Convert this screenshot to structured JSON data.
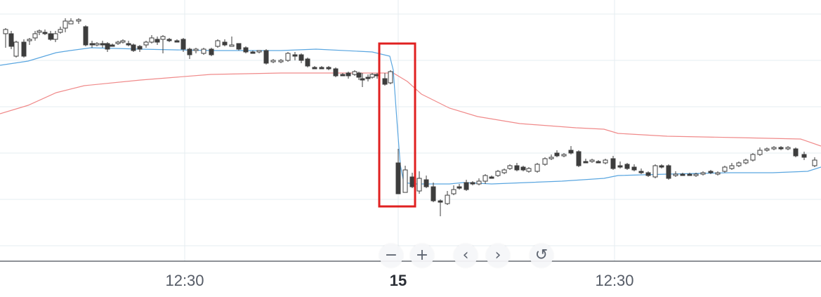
{
  "chart_data": {
    "type": "candlestick",
    "x_axis": {
      "tick_labels": [
        "12:30",
        "15",
        "12:30"
      ],
      "bold_labels": [
        "15"
      ]
    },
    "y_range": [
      0,
      423
    ],
    "colors": {
      "up_candle_fill": "#ffffff",
      "down_candle_fill": "#3d3d3d",
      "candle_outline": "#3d3d3d",
      "blue_line": "#5aa6e0",
      "red_line": "#f08a8a",
      "highlight_box": "#e02020",
      "grid": "#e6ecf1"
    },
    "candles": [
      [
        8,
        48,
        42,
        68,
        40
      ],
      [
        16,
        48,
        66,
        70,
        44
      ],
      [
        23,
        80,
        60,
        82,
        58
      ],
      [
        34,
        60,
        80,
        82,
        56
      ],
      [
        42,
        58,
        56,
        64,
        54
      ],
      [
        50,
        54,
        48,
        58,
        44
      ],
      [
        56,
        46,
        44,
        50,
        42
      ],
      [
        64,
        46,
        46,
        50,
        42
      ],
      [
        72,
        48,
        56,
        58,
        44
      ],
      [
        79,
        56,
        48,
        60,
        44
      ],
      [
        86,
        46,
        42,
        48,
        38
      ],
      [
        93,
        40,
        30,
        46,
        26
      ],
      [
        101,
        34,
        30,
        34,
        26
      ],
      [
        112,
        30,
        28,
        34,
        26
      ],
      [
        122,
        38,
        64,
        66,
        36
      ],
      [
        131,
        62,
        64,
        68,
        58
      ],
      [
        138,
        64,
        62,
        66,
        60
      ],
      [
        146,
        62,
        64,
        68,
        58
      ],
      [
        153,
        62,
        70,
        74,
        60
      ],
      [
        160,
        64,
        64,
        66,
        62
      ],
      [
        168,
        62,
        60,
        64,
        58
      ],
      [
        175,
        60,
        58,
        62,
        56
      ],
      [
        183,
        62,
        64,
        66,
        58
      ],
      [
        190,
        64,
        72,
        74,
        62
      ],
      [
        199,
        66,
        70,
        74,
        64
      ],
      [
        208,
        64,
        60,
        68,
        58
      ],
      [
        216,
        60,
        54,
        62,
        50
      ],
      [
        224,
        56,
        60,
        64,
        52
      ],
      [
        232,
        56,
        52,
        76,
        50
      ],
      [
        241,
        56,
        58,
        60,
        54
      ],
      [
        252,
        58,
        58,
        60,
        56
      ],
      [
        261,
        56,
        70,
        74,
        54
      ],
      [
        270,
        70,
        78,
        84,
        68
      ],
      [
        279,
        72,
        70,
        76,
        68
      ],
      [
        290,
        76,
        70,
        78,
        68
      ],
      [
        301,
        70,
        78,
        80,
        68
      ],
      [
        310,
        66,
        58,
        68,
        56
      ],
      [
        320,
        60,
        64,
        66,
        56
      ],
      [
        330,
        66,
        64,
        66,
        52
      ],
      [
        340,
        62,
        70,
        72,
        62
      ],
      [
        350,
        68,
        74,
        76,
        66
      ],
      [
        360,
        74,
        74,
        76,
        72
      ],
      [
        369,
        74,
        72,
        76,
        72
      ],
      [
        379,
        72,
        90,
        92,
        70
      ],
      [
        389,
        88,
        86,
        90,
        84
      ],
      [
        400,
        88,
        86,
        90,
        84
      ],
      [
        410,
        86,
        76,
        88,
        74
      ],
      [
        420,
        78,
        78,
        86,
        74
      ],
      [
        429,
        78,
        86,
        90,
        76
      ],
      [
        438,
        84,
        94,
        96,
        82
      ],
      [
        448,
        96,
        96,
        98,
        94
      ],
      [
        458,
        96,
        96,
        98,
        94
      ],
      [
        468,
        96,
        98,
        100,
        94
      ],
      [
        478,
        98,
        108,
        110,
        96
      ],
      [
        488,
        106,
        106,
        108,
        104
      ],
      [
        496,
        104,
        108,
        112,
        102
      ],
      [
        505,
        106,
        102,
        108,
        100
      ],
      [
        511,
        104,
        110,
        114,
        102
      ],
      [
        516,
        112,
        112,
        124,
        104
      ],
      [
        524,
        110,
        110,
        116,
        106
      ],
      [
        530,
        110,
        106,
        112,
        104
      ],
      [
        537,
        106,
        106,
        112,
        104
      ],
      [
        548,
        112,
        120,
        122,
        104
      ],
      [
        556,
        118,
        102,
        120,
        100
      ],
      [
        567,
        232,
        276,
        276,
        212
      ],
      [
        577,
        274,
        242,
        274,
        236
      ],
      [
        587,
        252,
        266,
        268,
        246
      ],
      [
        597,
        272,
        254,
        276,
        244
      ],
      [
        607,
        256,
        266,
        268,
        250
      ],
      [
        617,
        266,
        286,
        288,
        260
      ],
      [
        627,
        286,
        286,
        308,
        284
      ],
      [
        637,
        290,
        278,
        292,
        272
      ],
      [
        646,
        276,
        270,
        278,
        264
      ],
      [
        654,
        266,
        266,
        270,
        262
      ],
      [
        664,
        260,
        270,
        272,
        256
      ],
      [
        673,
        260,
        262,
        264,
        258
      ],
      [
        682,
        262,
        258,
        264,
        254
      ],
      [
        691,
        258,
        250,
        262,
        248
      ],
      [
        700,
        252,
        252,
        254,
        250
      ],
      [
        709,
        250,
        244,
        252,
        242
      ],
      [
        718,
        246,
        242,
        248,
        240
      ],
      [
        726,
        240,
        236,
        242,
        234
      ],
      [
        736,
        236,
        242,
        244,
        232
      ],
      [
        745,
        238,
        242,
        244,
        236
      ],
      [
        753,
        244,
        240,
        246,
        238
      ],
      [
        765,
        244,
        234,
        246,
        232
      ],
      [
        776,
        234,
        226,
        236,
        224
      ],
      [
        785,
        226,
        224,
        228,
        220
      ],
      [
        793,
        218,
        222,
        224,
        214
      ],
      [
        803,
        222,
        220,
        224,
        218
      ],
      [
        813,
        214,
        218,
        220,
        208
      ],
      [
        824,
        216,
        236,
        238,
        214
      ],
      [
        834,
        230,
        230,
        232,
        226
      ],
      [
        843,
        230,
        228,
        232,
        226
      ],
      [
        852,
        230,
        230,
        232,
        228
      ],
      [
        862,
        232,
        228,
        234,
        226
      ],
      [
        873,
        226,
        240,
        242,
        222
      ],
      [
        883,
        236,
        236,
        240,
        230
      ],
      [
        893,
        234,
        240,
        242,
        232
      ],
      [
        903,
        238,
        242,
        244,
        234
      ],
      [
        913,
        244,
        246,
        248,
        240
      ],
      [
        923,
        246,
        250,
        252,
        244
      ],
      [
        933,
        252,
        236,
        254,
        234
      ],
      [
        942,
        236,
        238,
        240,
        234
      ],
      [
        952,
        236,
        254,
        256,
        234
      ],
      [
        962,
        250,
        248,
        252,
        244
      ],
      [
        972,
        248,
        248,
        250,
        246
      ],
      [
        982,
        248,
        248,
        250,
        246
      ],
      [
        991,
        250,
        248,
        252,
        246
      ],
      [
        1001,
        248,
        246,
        250,
        244
      ],
      [
        1012,
        244,
        246,
        248,
        242
      ],
      [
        1022,
        248,
        246,
        250,
        244
      ],
      [
        1032,
        244,
        238,
        246,
        236
      ],
      [
        1042,
        240,
        236,
        242,
        232
      ],
      [
        1052,
        236,
        232,
        238,
        230
      ],
      [
        1062,
        232,
        228,
        234,
        226
      ],
      [
        1072,
        228,
        220,
        230,
        218
      ],
      [
        1082,
        220,
        214,
        222,
        210
      ],
      [
        1092,
        214,
        212,
        216,
        210
      ],
      [
        1102,
        212,
        210,
        214,
        208
      ],
      [
        1112,
        210,
        212,
        214,
        208
      ],
      [
        1122,
        212,
        210,
        214,
        208
      ],
      [
        1133,
        212,
        222,
        224,
        210
      ],
      [
        1145,
        220,
        224,
        228,
        216
      ],
      [
        1160,
        236,
        228,
        238,
        224
      ]
    ],
    "blue_line": [
      [
        0,
        93
      ],
      [
        40,
        87
      ],
      [
        80,
        75
      ],
      [
        100,
        72
      ],
      [
        130,
        68
      ],
      [
        200,
        70
      ],
      [
        300,
        72
      ],
      [
        400,
        72
      ],
      [
        450,
        70
      ],
      [
        530,
        74
      ],
      [
        555,
        80
      ],
      [
        560,
        100
      ],
      [
        565,
        170
      ],
      [
        570,
        235
      ],
      [
        575,
        260
      ],
      [
        590,
        262
      ],
      [
        640,
        262
      ],
      [
        660,
        260
      ],
      [
        700,
        262
      ],
      [
        800,
        258
      ],
      [
        860,
        254
      ],
      [
        880,
        250
      ],
      [
        950,
        248
      ],
      [
        1040,
        246
      ],
      [
        1100,
        246
      ],
      [
        1150,
        244
      ],
      [
        1169,
        238
      ]
    ],
    "red_line": [
      [
        0,
        162
      ],
      [
        40,
        150
      ],
      [
        80,
        132
      ],
      [
        120,
        122
      ],
      [
        200,
        114
      ],
      [
        300,
        106
      ],
      [
        400,
        104
      ],
      [
        500,
        104
      ],
      [
        560,
        104
      ],
      [
        580,
        116
      ],
      [
        600,
        134
      ],
      [
        640,
        154
      ],
      [
        680,
        166
      ],
      [
        740,
        176
      ],
      [
        820,
        182
      ],
      [
        860,
        184
      ],
      [
        880,
        190
      ],
      [
        950,
        194
      ],
      [
        1050,
        196
      ],
      [
        1140,
        198
      ],
      [
        1169,
        208
      ]
    ]
  },
  "controls": {
    "zoom_out": "−",
    "zoom_in": "+",
    "prev": "‹",
    "next": "›",
    "reset": "↺"
  }
}
